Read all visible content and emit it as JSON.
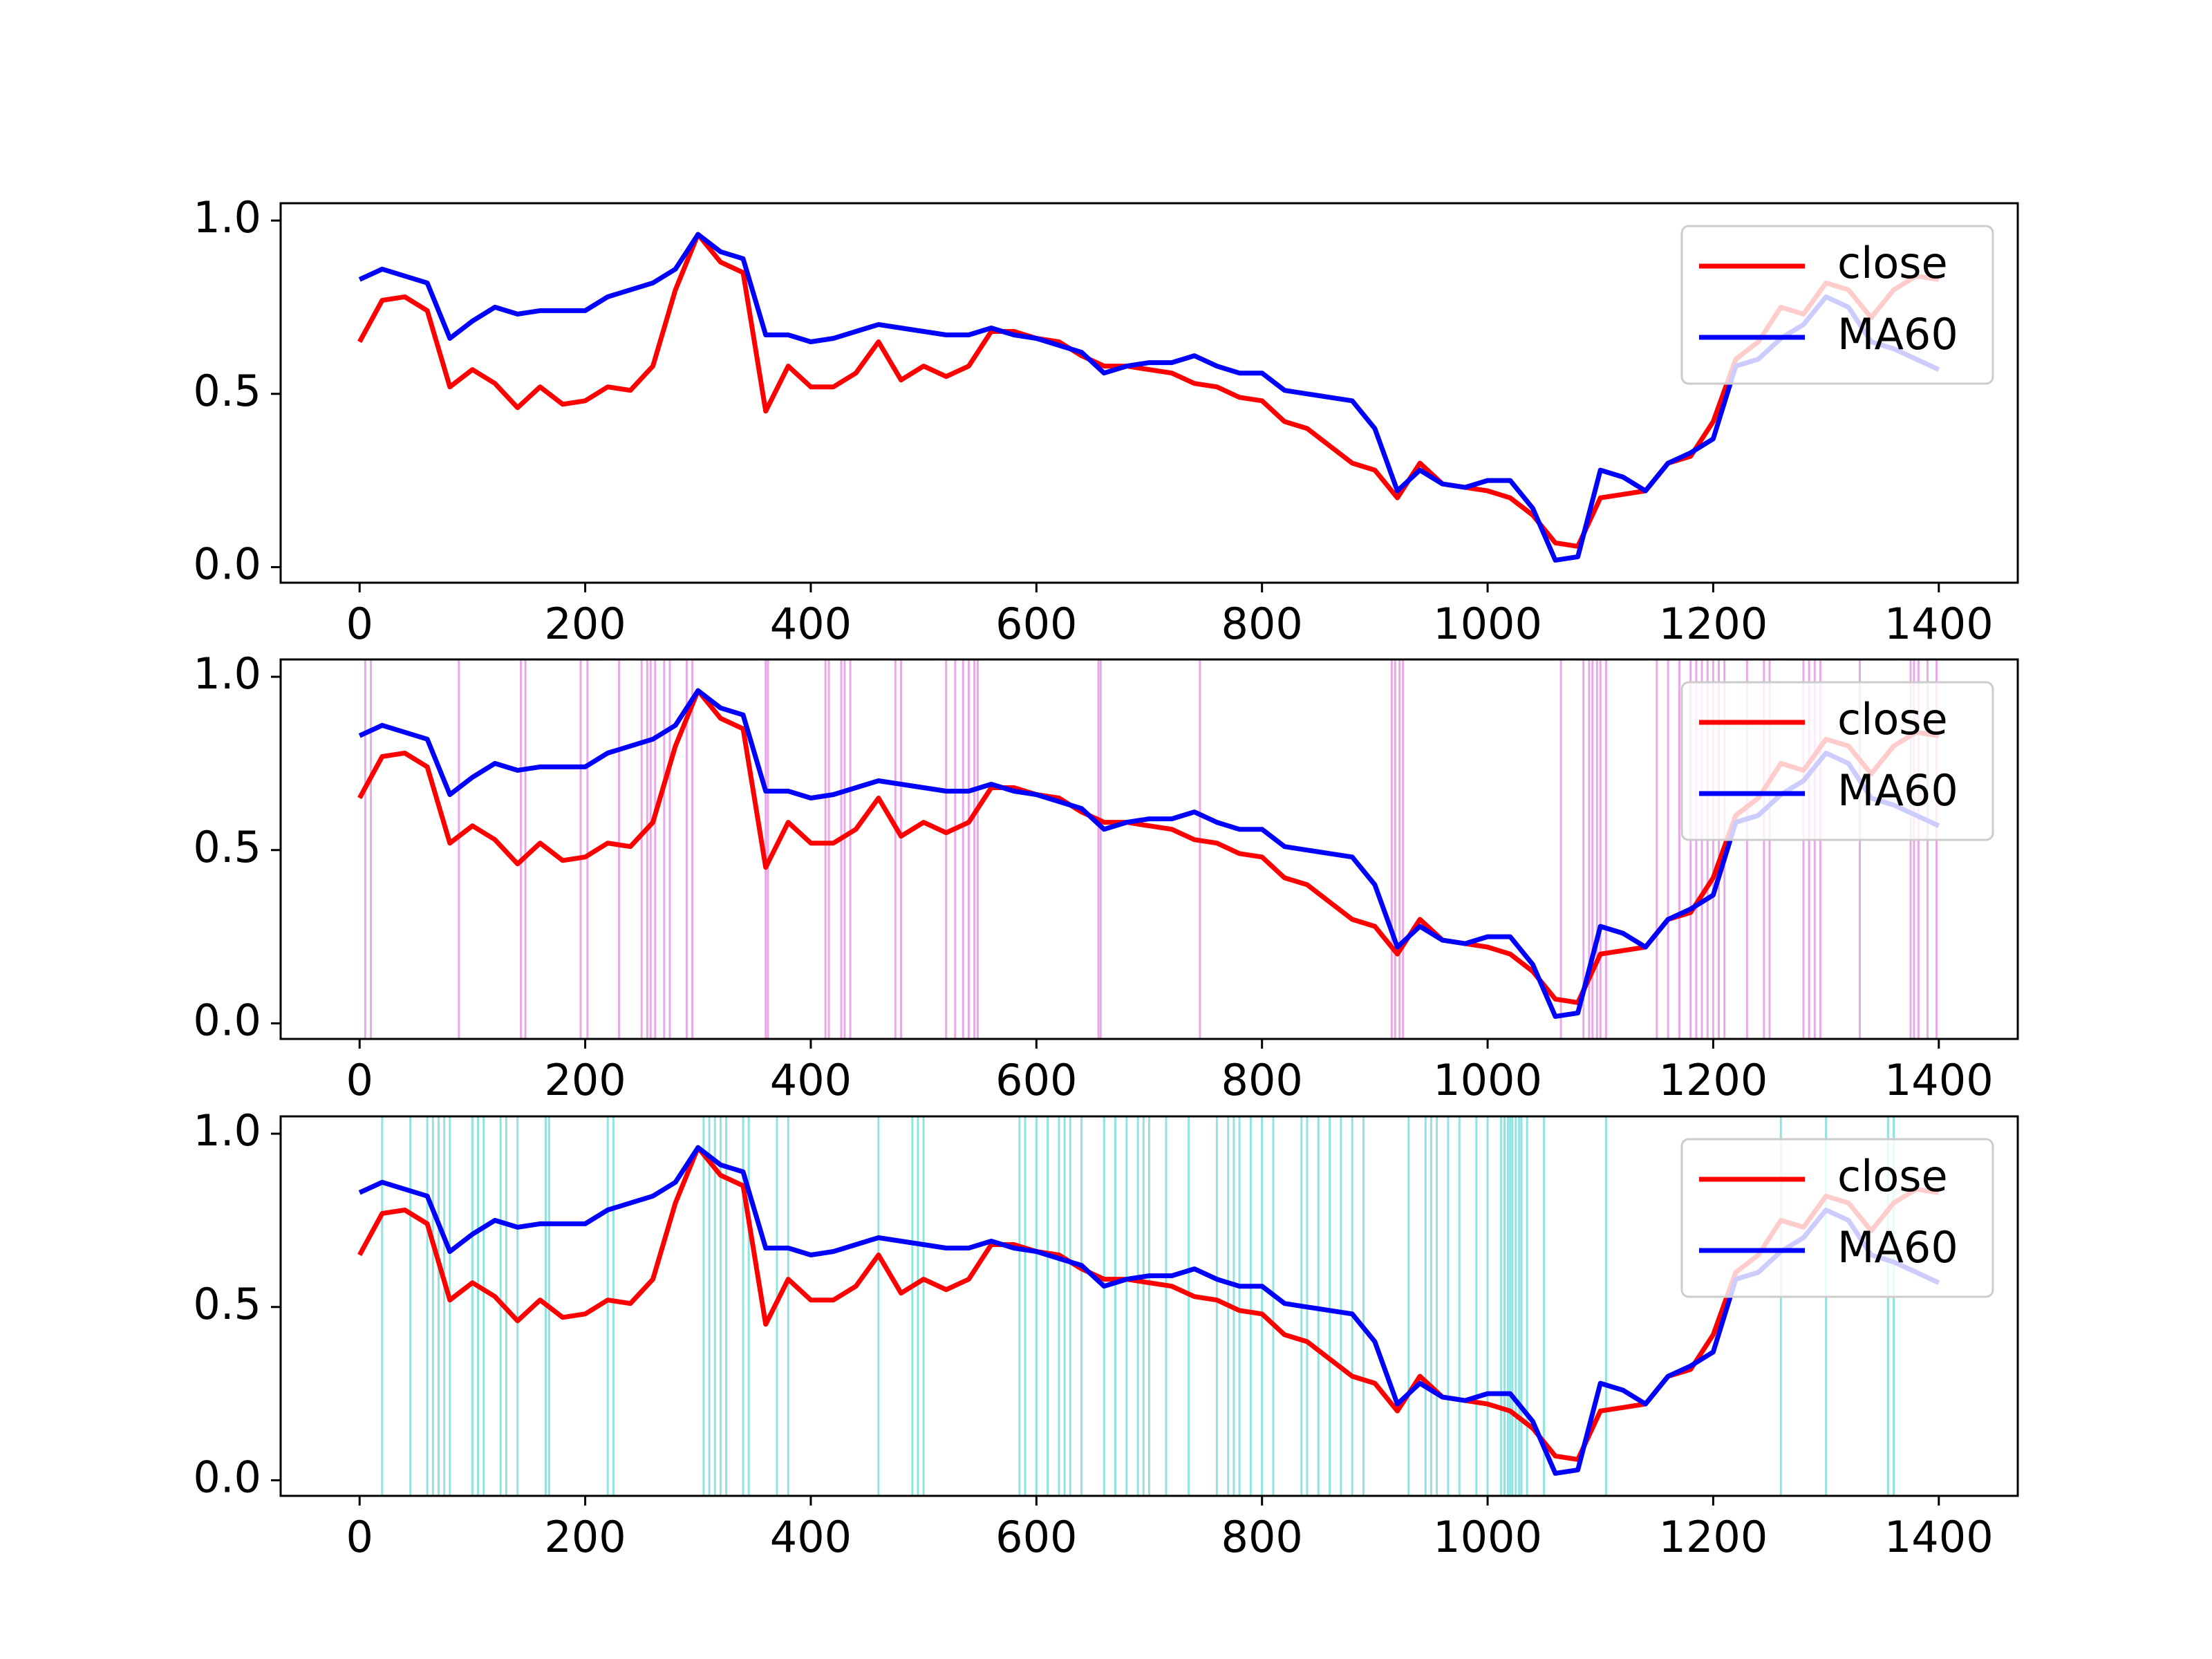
{
  "chart_data": [
    {
      "type": "line",
      "legend": "upper right",
      "xlim": [
        -70,
        1470
      ],
      "ylim": [
        -0.045,
        1.05
      ],
      "xticks": [
        0,
        200,
        400,
        600,
        800,
        1000,
        1200,
        1400
      ],
      "yticks": [
        {
          "value": 0,
          "label": "0.0"
        },
        0.5,
        {
          "value": 1,
          "label": "1.0"
        }
      ],
      "x": [
        0,
        20,
        40,
        60,
        80,
        100,
        120,
        140,
        160,
        180,
        200,
        220,
        240,
        260,
        280,
        300,
        320,
        340,
        360,
        380,
        400,
        420,
        440,
        460,
        480,
        500,
        520,
        540,
        560,
        580,
        600,
        620,
        640,
        660,
        680,
        700,
        720,
        740,
        760,
        780,
        800,
        820,
        840,
        860,
        880,
        900,
        920,
        940,
        960,
        980,
        1000,
        1020,
        1040,
        1060,
        1080,
        1100,
        1120,
        1140,
        1160,
        1180,
        1200,
        1220,
        1240,
        1260,
        1280,
        1300,
        1320,
        1340,
        1360,
        1380,
        1400
      ],
      "series": [
        {
          "name": "close",
          "color": "#ff0000",
          "values": [
            0.65,
            0.77,
            0.78,
            0.74,
            0.52,
            0.57,
            0.53,
            0.46,
            0.52,
            0.47,
            0.48,
            0.52,
            0.51,
            0.58,
            0.8,
            0.96,
            0.88,
            0.85,
            0.45,
            0.58,
            0.52,
            0.52,
            0.56,
            0.65,
            0.54,
            0.58,
            0.55,
            0.58,
            0.68,
            0.68,
            0.66,
            0.65,
            0.61,
            0.58,
            0.58,
            0.57,
            0.56,
            0.53,
            0.52,
            0.49,
            0.48,
            0.42,
            0.4,
            0.35,
            0.3,
            0.28,
            0.2,
            0.3,
            0.24,
            0.23,
            0.22,
            0.2,
            0.15,
            0.07,
            0.06,
            0.2,
            0.21,
            0.22,
            0.3,
            0.32,
            0.42,
            0.6,
            0.65,
            0.75,
            0.73,
            0.82,
            0.8,
            0.72,
            0.8,
            0.84,
            0.83
          ]
        },
        {
          "name": "MA60",
          "color": "#0000ff",
          "values": [
            0.83,
            0.86,
            0.84,
            0.82,
            0.66,
            0.71,
            0.75,
            0.73,
            0.74,
            0.74,
            0.74,
            0.78,
            0.8,
            0.82,
            0.86,
            0.96,
            0.91,
            0.89,
            0.67,
            0.67,
            0.65,
            0.66,
            0.68,
            0.7,
            0.69,
            0.68,
            0.67,
            0.67,
            0.69,
            0.67,
            0.66,
            0.64,
            0.62,
            0.56,
            0.58,
            0.59,
            0.59,
            0.61,
            0.58,
            0.56,
            0.56,
            0.51,
            0.5,
            0.49,
            0.48,
            0.4,
            0.22,
            0.28,
            0.24,
            0.23,
            0.25,
            0.25,
            0.17,
            0.02,
            0.03,
            0.28,
            0.26,
            0.22,
            0.3,
            0.33,
            0.37,
            0.58,
            0.6,
            0.66,
            0.7,
            0.78,
            0.75,
            0.65,
            0.63,
            0.6,
            0.57
          ]
        }
      ]
    },
    {
      "type": "line",
      "legend": "upper right",
      "xlim": [
        -70,
        1470
      ],
      "ylim": [
        -0.045,
        1.05
      ],
      "xticks": [
        0,
        200,
        400,
        600,
        800,
        1000,
        1200,
        1400
      ],
      "yticks": [
        {
          "value": 0,
          "label": "0.0"
        },
        0.5,
        {
          "value": 1,
          "label": "1.0"
        }
      ],
      "vlines": {
        "color": "#da70d6",
        "x": [
          5,
          10,
          88,
          143,
          147,
          196,
          202,
          230,
          250,
          255,
          258,
          262,
          270,
          275,
          290,
          295,
          360,
          362,
          413,
          416,
          427,
          430,
          435,
          475,
          480,
          520,
          528,
          535,
          540,
          545,
          548,
          655,
          657,
          745,
          915,
          918,
          922,
          925,
          1065,
          1085,
          1090,
          1093,
          1097,
          1100,
          1105,
          1150,
          1160,
          1170,
          1180,
          1185,
          1190,
          1195,
          1200,
          1205,
          1210,
          1230,
          1245,
          1250,
          1280,
          1285,
          1290,
          1295,
          1330,
          1375,
          1378,
          1382,
          1390,
          1398
        ]
      },
      "x": [
        0,
        20,
        40,
        60,
        80,
        100,
        120,
        140,
        160,
        180,
        200,
        220,
        240,
        260,
        280,
        300,
        320,
        340,
        360,
        380,
        400,
        420,
        440,
        460,
        480,
        500,
        520,
        540,
        560,
        580,
        600,
        620,
        640,
        660,
        680,
        700,
        720,
        740,
        760,
        780,
        800,
        820,
        840,
        860,
        880,
        900,
        920,
        940,
        960,
        980,
        1000,
        1020,
        1040,
        1060,
        1080,
        1100,
        1120,
        1140,
        1160,
        1180,
        1200,
        1220,
        1240,
        1260,
        1280,
        1300,
        1320,
        1340,
        1360,
        1380,
        1400
      ],
      "series": [
        {
          "name": "close",
          "color": "#ff0000",
          "values": [
            0.65,
            0.77,
            0.78,
            0.74,
            0.52,
            0.57,
            0.53,
            0.46,
            0.52,
            0.47,
            0.48,
            0.52,
            0.51,
            0.58,
            0.8,
            0.96,
            0.88,
            0.85,
            0.45,
            0.58,
            0.52,
            0.52,
            0.56,
            0.65,
            0.54,
            0.58,
            0.55,
            0.58,
            0.68,
            0.68,
            0.66,
            0.65,
            0.61,
            0.58,
            0.58,
            0.57,
            0.56,
            0.53,
            0.52,
            0.49,
            0.48,
            0.42,
            0.4,
            0.35,
            0.3,
            0.28,
            0.2,
            0.3,
            0.24,
            0.23,
            0.22,
            0.2,
            0.15,
            0.07,
            0.06,
            0.2,
            0.21,
            0.22,
            0.3,
            0.32,
            0.42,
            0.6,
            0.65,
            0.75,
            0.73,
            0.82,
            0.8,
            0.72,
            0.8,
            0.84,
            0.83
          ]
        },
        {
          "name": "MA60",
          "color": "#0000ff",
          "values": [
            0.83,
            0.86,
            0.84,
            0.82,
            0.66,
            0.71,
            0.75,
            0.73,
            0.74,
            0.74,
            0.74,
            0.78,
            0.8,
            0.82,
            0.86,
            0.96,
            0.91,
            0.89,
            0.67,
            0.67,
            0.65,
            0.66,
            0.68,
            0.7,
            0.69,
            0.68,
            0.67,
            0.67,
            0.69,
            0.67,
            0.66,
            0.64,
            0.62,
            0.56,
            0.58,
            0.59,
            0.59,
            0.61,
            0.58,
            0.56,
            0.56,
            0.51,
            0.5,
            0.49,
            0.48,
            0.4,
            0.22,
            0.28,
            0.24,
            0.23,
            0.25,
            0.25,
            0.17,
            0.02,
            0.03,
            0.28,
            0.26,
            0.22,
            0.3,
            0.33,
            0.37,
            0.58,
            0.6,
            0.66,
            0.7,
            0.78,
            0.75,
            0.65,
            0.63,
            0.6,
            0.57
          ]
        }
      ]
    },
    {
      "type": "line",
      "legend": "upper right",
      "xlim": [
        -70,
        1470
      ],
      "ylim": [
        -0.045,
        1.05
      ],
      "xticks": [
        0,
        200,
        400,
        600,
        800,
        1000,
        1200,
        1400
      ],
      "yticks": [
        {
          "value": 0,
          "label": "0.0"
        },
        0.5,
        {
          "value": 1,
          "label": "1.0"
        }
      ],
      "vlines": {
        "color": "#48d1cc",
        "x": [
          20,
          45,
          60,
          65,
          70,
          75,
          80,
          100,
          105,
          110,
          125,
          130,
          140,
          165,
          168,
          220,
          225,
          305,
          310,
          315,
          320,
          325,
          340,
          345,
          370,
          380,
          460,
          490,
          495,
          500,
          585,
          590,
          600,
          610,
          620,
          625,
          630,
          640,
          660,
          670,
          680,
          690,
          695,
          700,
          715,
          735,
          760,
          770,
          775,
          780,
          790,
          800,
          810,
          835,
          840,
          850,
          860,
          870,
          880,
          890,
          930,
          945,
          950,
          955,
          965,
          975,
          990,
          1000,
          1012,
          1015,
          1018,
          1020,
          1022,
          1025,
          1028,
          1030,
          1035,
          1050,
          1105,
          1260,
          1300,
          1355,
          1360
        ]
      },
      "x": [
        0,
        20,
        40,
        60,
        80,
        100,
        120,
        140,
        160,
        180,
        200,
        220,
        240,
        260,
        280,
        300,
        320,
        340,
        360,
        380,
        400,
        420,
        440,
        460,
        480,
        500,
        520,
        540,
        560,
        580,
        600,
        620,
        640,
        660,
        680,
        700,
        720,
        740,
        760,
        780,
        800,
        820,
        840,
        860,
        880,
        900,
        920,
        940,
        960,
        980,
        1000,
        1020,
        1040,
        1060,
        1080,
        1100,
        1120,
        1140,
        1160,
        1180,
        1200,
        1220,
        1240,
        1260,
        1280,
        1300,
        1320,
        1340,
        1360,
        1380,
        1400
      ],
      "series": [
        {
          "name": "close",
          "color": "#ff0000",
          "values": [
            0.65,
            0.77,
            0.78,
            0.74,
            0.52,
            0.57,
            0.53,
            0.46,
            0.52,
            0.47,
            0.48,
            0.52,
            0.51,
            0.58,
            0.8,
            0.96,
            0.88,
            0.85,
            0.45,
            0.58,
            0.52,
            0.52,
            0.56,
            0.65,
            0.54,
            0.58,
            0.55,
            0.58,
            0.68,
            0.68,
            0.66,
            0.65,
            0.61,
            0.58,
            0.58,
            0.57,
            0.56,
            0.53,
            0.52,
            0.49,
            0.48,
            0.42,
            0.4,
            0.35,
            0.3,
            0.28,
            0.2,
            0.3,
            0.24,
            0.23,
            0.22,
            0.2,
            0.15,
            0.07,
            0.06,
            0.2,
            0.21,
            0.22,
            0.3,
            0.32,
            0.42,
            0.6,
            0.65,
            0.75,
            0.73,
            0.82,
            0.8,
            0.72,
            0.8,
            0.84,
            0.83
          ]
        },
        {
          "name": "MA60",
          "color": "#0000ff",
          "values": [
            0.83,
            0.86,
            0.84,
            0.82,
            0.66,
            0.71,
            0.75,
            0.73,
            0.74,
            0.74,
            0.74,
            0.78,
            0.8,
            0.82,
            0.86,
            0.96,
            0.91,
            0.89,
            0.67,
            0.67,
            0.65,
            0.66,
            0.68,
            0.7,
            0.69,
            0.68,
            0.67,
            0.67,
            0.69,
            0.67,
            0.66,
            0.64,
            0.62,
            0.56,
            0.58,
            0.59,
            0.59,
            0.61,
            0.58,
            0.56,
            0.56,
            0.51,
            0.5,
            0.49,
            0.48,
            0.4,
            0.22,
            0.28,
            0.24,
            0.23,
            0.25,
            0.25,
            0.17,
            0.02,
            0.03,
            0.28,
            0.26,
            0.22,
            0.3,
            0.33,
            0.37,
            0.58,
            0.6,
            0.66,
            0.7,
            0.78,
            0.75,
            0.65,
            0.63,
            0.6,
            0.57
          ]
        }
      ]
    }
  ]
}
